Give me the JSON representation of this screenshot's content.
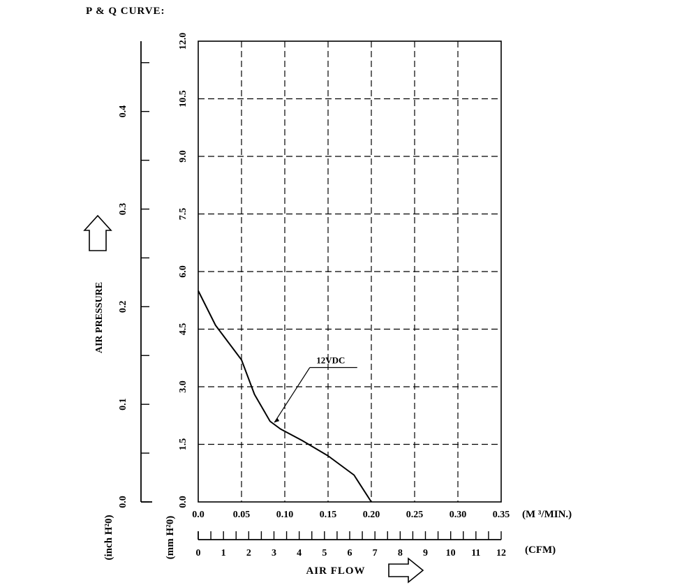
{
  "page_title": "P & Q CURVE:",
  "chart_data": {
    "type": "line",
    "title": "P & Q CURVE:",
    "xlabel": "AIR FLOW",
    "ylabel": "AIR PRESSURE",
    "x_unit_primary": "(M ³/MIN.)",
    "x_unit_secondary": "(CFM)",
    "y_unit_primary": "(mm H²0)",
    "y_unit_secondary": "(inch H²0)",
    "xlim": [
      0,
      0.35
    ],
    "ylim": [
      0,
      12
    ],
    "grid": true,
    "x_ticks": [
      "0.0",
      "0.05",
      "0.10",
      "0.15",
      "0.20",
      "0.25",
      "0.30",
      "0.35"
    ],
    "y_ticks": [
      "0.0",
      "1.5",
      "3.0",
      "4.5",
      "6.0",
      "7.5",
      "9.0",
      "10.5",
      "12.0"
    ],
    "cfm_ticks": [
      "0",
      "1",
      "2",
      "3",
      "4",
      "5",
      "6",
      "7",
      "8",
      "9",
      "10",
      "11",
      "12"
    ],
    "inch_ticks": [
      "0.0",
      "0.1",
      "0.2",
      "0.3",
      "0.4"
    ],
    "inch_ylim": [
      0,
      0.472
    ],
    "series": [
      {
        "name": "12VDC",
        "x": [
          0.0,
          0.02,
          0.05,
          0.065,
          0.083,
          0.095,
          0.12,
          0.15,
          0.18,
          0.19,
          0.2
        ],
        "y": [
          5.5,
          4.6,
          3.7,
          2.8,
          2.1,
          1.9,
          1.6,
          1.2,
          0.7,
          0.35,
          0.0
        ]
      }
    ],
    "annotation": {
      "text": "12VDC",
      "point": [
        0.088,
        2.07
      ],
      "label_at": [
        0.145,
        3.5
      ]
    }
  }
}
